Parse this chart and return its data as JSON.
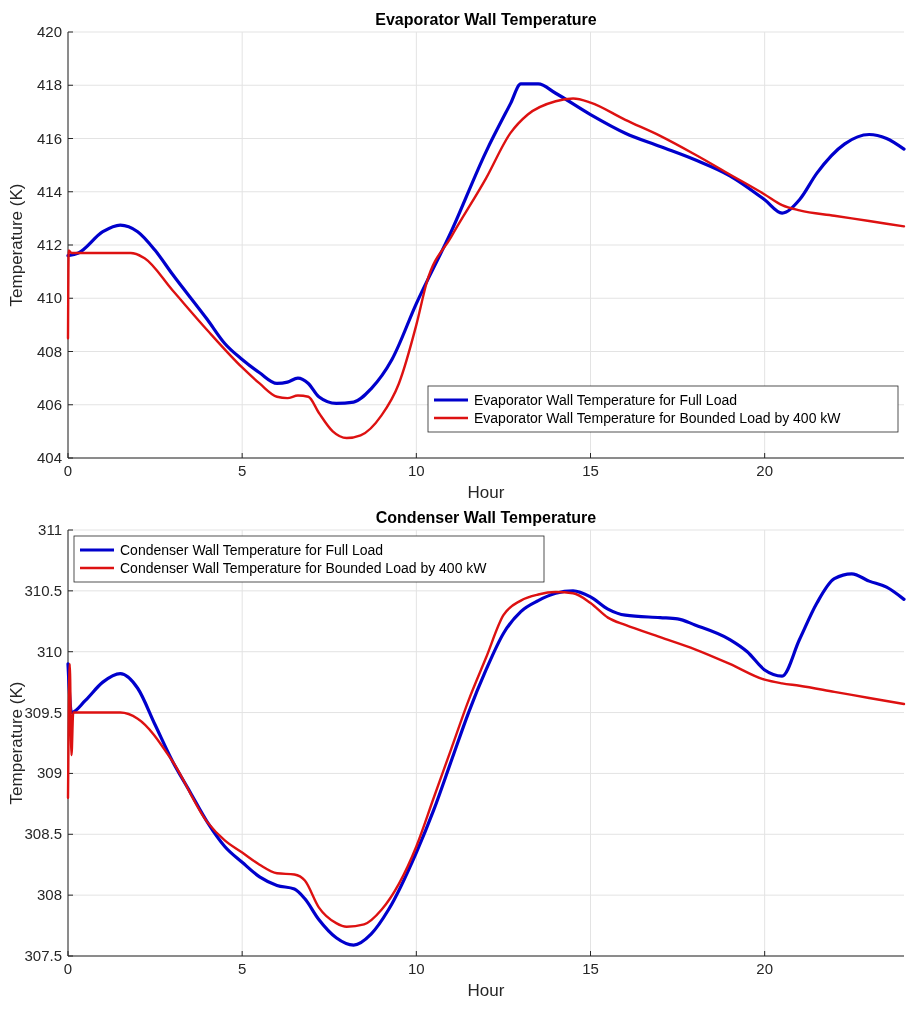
{
  "chart_data": [
    {
      "type": "line",
      "title": "Evaporator Wall Temperature",
      "xlabel": "Hour",
      "ylabel": "Temperature (K)",
      "xlim": [
        0,
        24
      ],
      "xticks": [
        0,
        5,
        10,
        15,
        20
      ],
      "ylim": [
        404,
        420
      ],
      "yticks": [
        404,
        406,
        408,
        410,
        412,
        414,
        416,
        418,
        420
      ],
      "grid": true,
      "legend": "bottom right",
      "series": [
        {
          "name": "Evaporator Wall Temperature for Full Load",
          "color": "#0000cc",
          "x": [
            0,
            0.3,
            1,
            1.5,
            2,
            2.5,
            3,
            4,
            4.5,
            5,
            5.5,
            6,
            6.3,
            6.6,
            6.9,
            7.2,
            7.7,
            8.2,
            8.7,
            9.3,
            10,
            11,
            12,
            12.7,
            13,
            13.5,
            14,
            15,
            16,
            17,
            18,
            19,
            20,
            20.5,
            21,
            21.5,
            22.3,
            23,
            23.5,
            24
          ],
          "values": [
            411.6,
            411.7,
            412.5,
            412.75,
            412.5,
            411.8,
            410.9,
            409.2,
            408.3,
            407.7,
            407.2,
            406.8,
            406.85,
            407.0,
            406.8,
            406.3,
            406.05,
            406.1,
            406.6,
            407.7,
            409.8,
            412.5,
            415.5,
            417.3,
            418.05,
            418.05,
            417.7,
            416.9,
            416.2,
            415.7,
            415.2,
            414.6,
            413.7,
            413.2,
            413.7,
            414.7,
            415.8,
            416.15,
            416.0,
            415.6
          ]
        },
        {
          "name": "Evaporator Wall Temperature for Bounded Load by 400 kW",
          "color": "#dd1111",
          "x": [
            0,
            0.02,
            0.1,
            1,
            1.8,
            2.2,
            3,
            4,
            5,
            5.5,
            6,
            6.3,
            6.6,
            6.9,
            7.2,
            7.6,
            8,
            8.4,
            9,
            9.5,
            10,
            10.3,
            11,
            12,
            12.7,
            13.2,
            14,
            14.5,
            15,
            16,
            17,
            18,
            19,
            20,
            20.5,
            21,
            22,
            23,
            24
          ],
          "values": [
            408.5,
            411.8,
            411.7,
            411.7,
            411.7,
            411.5,
            410.3,
            408.8,
            407.4,
            406.8,
            406.3,
            406.25,
            406.35,
            406.3,
            405.7,
            405.0,
            404.75,
            404.85,
            405.6,
            406.8,
            409,
            410.6,
            412.3,
            414.5,
            416.2,
            416.9,
            417.4,
            417.5,
            417.35,
            416.7,
            416.1,
            415.4,
            414.65,
            413.9,
            413.5,
            413.3,
            413.1,
            412.9,
            412.7
          ]
        }
      ]
    },
    {
      "type": "line",
      "title": "Condenser Wall Temperature",
      "xlabel": "Hour",
      "ylabel": "Temperature (K)",
      "xlim": [
        0,
        24
      ],
      "xticks": [
        0,
        5,
        10,
        15,
        20
      ],
      "ylim": [
        307.5,
        311
      ],
      "yticks": [
        307.5,
        308,
        308.5,
        309,
        309.5,
        310,
        310.5,
        311
      ],
      "grid": true,
      "legend": "top left",
      "series": [
        {
          "name": "Condenser Wall Temperature for Full Load",
          "color": "#0000cc",
          "x": [
            0,
            0.1,
            0.5,
            1,
            1.5,
            2,
            2.5,
            3,
            3.5,
            4,
            4.5,
            5,
            5.5,
            6,
            6.5,
            6.8,
            7.2,
            7.7,
            8.2,
            8.7,
            9.2,
            10,
            10.5,
            11,
            11.5,
            12,
            12.5,
            13,
            13.5,
            14,
            14.5,
            15,
            15.5,
            16,
            17,
            17.5,
            18,
            19,
            19.5,
            20,
            20.5,
            21,
            21.5,
            22,
            22.5,
            23,
            23.5,
            24
          ],
          "values": [
            309.9,
            309.5,
            309.6,
            309.75,
            309.82,
            309.7,
            309.4,
            309.1,
            308.85,
            308.6,
            308.4,
            308.27,
            308.15,
            308.08,
            308.05,
            307.97,
            307.8,
            307.65,
            307.59,
            307.68,
            307.88,
            308.35,
            308.7,
            309.1,
            309.5,
            309.85,
            310.15,
            310.33,
            310.42,
            310.48,
            310.5,
            310.45,
            310.35,
            310.3,
            310.28,
            310.27,
            310.22,
            310.1,
            310.0,
            309.85,
            309.8,
            310.1,
            310.4,
            310.6,
            310.64,
            310.58,
            310.53,
            310.43
          ]
        },
        {
          "name": "Condenser Wall Temperature for Bounded Load by 400 kW",
          "color": "#dd1111",
          "x": [
            0,
            0.05,
            0.1,
            0.15,
            1,
            1.5,
            2,
            3,
            4,
            4.5,
            5,
            5.5,
            6,
            6.5,
            6.8,
            7.2,
            7.7,
            8,
            8.5,
            9,
            10,
            10.5,
            11,
            11.5,
            12,
            12.5,
            13,
            13.5,
            14,
            14.5,
            15,
            15.5,
            16,
            17,
            18,
            19,
            20,
            20.5,
            21,
            22,
            23,
            24
          ],
          "values": [
            308.8,
            309.9,
            309.15,
            309.5,
            309.5,
            309.5,
            309.45,
            309.1,
            308.6,
            308.45,
            308.35,
            308.25,
            308.18,
            308.17,
            308.12,
            307.9,
            307.77,
            307.74,
            307.76,
            307.88,
            308.4,
            308.8,
            309.2,
            309.6,
            309.95,
            310.3,
            310.42,
            310.47,
            310.49,
            310.48,
            310.4,
            310.28,
            310.22,
            310.12,
            310.02,
            309.9,
            309.77,
            309.74,
            309.72,
            309.67,
            309.62,
            309.57
          ]
        }
      ]
    }
  ]
}
